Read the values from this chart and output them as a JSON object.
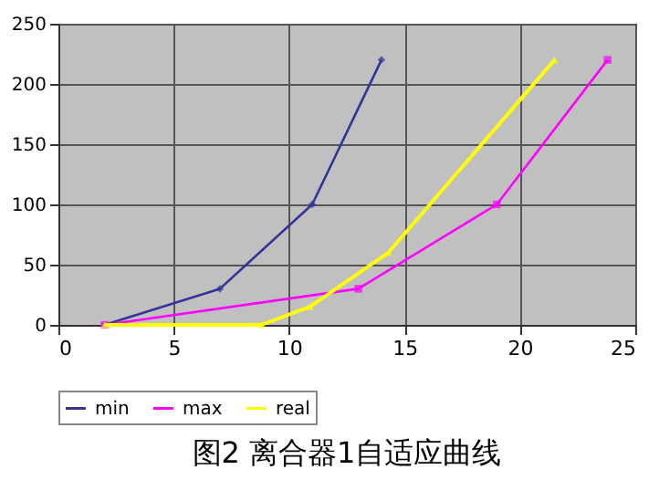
{
  "chart_data": {
    "type": "line",
    "title": "图2 离合器1自适应曲线",
    "xlim": [
      0,
      25
    ],
    "xticks": [
      0,
      5,
      10,
      15,
      20,
      25
    ],
    "ylim": [
      0,
      250
    ],
    "yticks": [
      0,
      50,
      100,
      150,
      200,
      250
    ],
    "grid": true,
    "legend": "bottom",
    "series": [
      {
        "name": "min",
        "color": "#333399",
        "marker": "diamond",
        "x": [
          2,
          7,
          11,
          14
        ],
        "values": [
          0,
          30,
          100,
          220
        ]
      },
      {
        "name": "max",
        "color": "#ff00ff",
        "marker": "square",
        "x": [
          2,
          13,
          19,
          23.8
        ],
        "values": [
          0,
          30,
          100,
          220
        ]
      },
      {
        "name": "real",
        "color": "#ffff00",
        "marker": "triangle",
        "x": [
          2,
          8.8,
          10.9,
          14.3,
          21.5
        ],
        "values": [
          0,
          0,
          15,
          60,
          220
        ]
      }
    ]
  }
}
